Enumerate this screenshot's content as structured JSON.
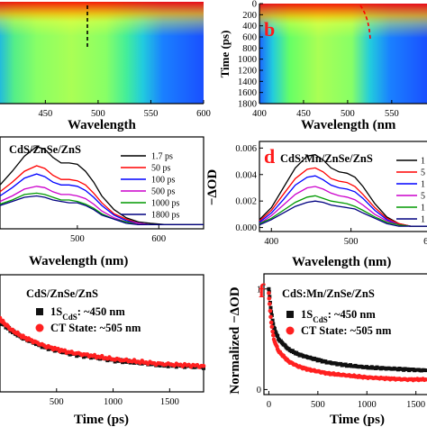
{
  "panel_labels": {
    "b": "b",
    "d": "d",
    "f": "f"
  },
  "colors": {
    "label_red": "#ff1a1a",
    "black": "#111111",
    "red": "#ff2020"
  },
  "chart_data": [
    {
      "id": "a",
      "type": "heatmap",
      "title": "",
      "xlabel": "Wavelength",
      "xticks": [
        "450",
        "500",
        "550",
        "600"
      ],
      "xlim": [
        407,
        600
      ],
      "marker": {
        "wavelength_nm": 505,
        "style": "dashed vertical",
        "color": "#000000"
      },
      "colormap": [
        "#ff0000",
        "#ffb000",
        "#ffff33",
        "#66ff66",
        "#22ccdd",
        "#1a66ff"
      ]
    },
    {
      "id": "b",
      "type": "heatmap",
      "title": "",
      "xlabel": "Wavelength (nm",
      "ylabel": "Time (ps)",
      "xticks": [
        "400",
        "450",
        "500",
        "550"
      ],
      "yticks": [
        "0",
        "200",
        "400",
        "600",
        "800",
        "1000",
        "1200",
        "1400",
        "1600",
        "1800"
      ],
      "xlim": [
        400,
        590
      ],
      "ylim": [
        0,
        1800
      ],
      "marker": {
        "points": [
          [
            504,
            0
          ],
          [
            508,
            400
          ],
          [
            512,
            800
          ]
        ],
        "style": "dashed curve",
        "color": "#ff0000"
      },
      "colormap": [
        "#ff0000",
        "#ffb000",
        "#ffff33",
        "#66ff66",
        "#22ccdd",
        "#1a66ff"
      ]
    },
    {
      "id": "c",
      "type": "line",
      "title": "CdS/ZnSe/ZnS",
      "xlabel": "Wavelength (nm)",
      "ylabel": "",
      "xticks": [
        "500",
        "600"
      ],
      "xlim": [
        405,
        655
      ],
      "ylim": [
        -0.0002,
        0.0065
      ],
      "legend_position": "top-right",
      "x": [
        405,
        420,
        435,
        450,
        460,
        470,
        480,
        490,
        500,
        510,
        520,
        530,
        545,
        560,
        575,
        590,
        610,
        630,
        655
      ],
      "series": [
        {
          "name": "1.7 ps",
          "color": "#000000",
          "values": [
            0.003,
            0.004,
            0.0051,
            0.0058,
            0.0056,
            0.005,
            0.0046,
            0.0046,
            0.0045,
            0.004,
            0.0032,
            0.0022,
            0.0012,
            0.0006,
            0.0003,
            0.0002,
            0.0001,
            0.0001,
            0.0001
          ]
        },
        {
          "name": "50 ps",
          "color": "#ff0000",
          "values": [
            0.0025,
            0.0032,
            0.004,
            0.0044,
            0.0042,
            0.0037,
            0.0034,
            0.0034,
            0.0033,
            0.003,
            0.0024,
            0.0017,
            0.0009,
            0.0005,
            0.0002,
            0.0001,
            0.0001,
            0.0001,
            0.0001
          ]
        },
        {
          "name": "100 ps",
          "color": "#0000ff",
          "values": [
            0.0022,
            0.0028,
            0.0035,
            0.0038,
            0.0036,
            0.0032,
            0.003,
            0.003,
            0.0029,
            0.0026,
            0.0021,
            0.0015,
            0.0008,
            0.0004,
            0.0002,
            0.0001,
            0.0001,
            0.0001,
            0.0001
          ]
        },
        {
          "name": "500 ps",
          "color": "#cc00cc",
          "values": [
            0.0018,
            0.0022,
            0.0027,
            0.0029,
            0.0028,
            0.0025,
            0.0023,
            0.0023,
            0.0022,
            0.002,
            0.0016,
            0.0011,
            0.0006,
            0.0003,
            0.0002,
            0.0001,
            0.0001,
            0.0001,
            0.0001
          ]
        },
        {
          "name": "1000 ps",
          "color": "#009900",
          "values": [
            0.0016,
            0.0019,
            0.0023,
            0.0024,
            0.0023,
            0.0021,
            0.0019,
            0.0019,
            0.0018,
            0.0016,
            0.0013,
            0.0009,
            0.0005,
            0.0003,
            0.0001,
            0.0001,
            0.0001,
            0.0001,
            0.0001
          ]
        },
        {
          "name": "1800 ps",
          "color": "#000080",
          "values": [
            0.0015,
            0.0018,
            0.0021,
            0.0022,
            0.0021,
            0.0019,
            0.0018,
            0.0017,
            0.0017,
            0.0015,
            0.0012,
            0.0008,
            0.0005,
            0.0002,
            0.0001,
            0.0001,
            0.0001,
            0.0001,
            0.0001
          ]
        }
      ]
    },
    {
      "id": "d",
      "type": "line",
      "title": "CdS:Mn/ZnSe/ZnS",
      "xlabel": "Wavelength (nm)",
      "ylabel": "−ΔOD",
      "xticks": [
        "400",
        "500",
        "600"
      ],
      "yticks": [
        "0.000",
        "0.002",
        "0.004",
        "0.006"
      ],
      "xlim": [
        385,
        600
      ],
      "ylim": [
        -0.0003,
        0.0065
      ],
      "legend_position": "top-right",
      "x": [
        385,
        400,
        415,
        430,
        445,
        455,
        465,
        475,
        485,
        495,
        505,
        515,
        530,
        545,
        560,
        575,
        590,
        600
      ],
      "series": [
        {
          "color": "#000000",
          "values": [
            0.0006,
            0.0015,
            0.003,
            0.0045,
            0.0054,
            0.0055,
            0.0051,
            0.0045,
            0.0042,
            0.0041,
            0.0038,
            0.0031,
            0.0018,
            0.0008,
            0.0003,
            0.0001,
            0.0001,
            0.0001
          ]
        },
        {
          "color": "#ff0000",
          "values": [
            0.0005,
            0.0013,
            0.0025,
            0.0037,
            0.0044,
            0.0045,
            0.0042,
            0.0037,
            0.0035,
            0.0034,
            0.0031,
            0.0025,
            0.0015,
            0.0007,
            0.0003,
            0.0001,
            0.0001,
            0.0001
          ]
        },
        {
          "color": "#0000ff",
          "values": [
            0.0004,
            0.0011,
            0.0021,
            0.0032,
            0.0038,
            0.0039,
            0.0036,
            0.0032,
            0.003,
            0.0029,
            0.0027,
            0.0022,
            0.0013,
            0.0006,
            0.0002,
            0.0001,
            0.0001,
            0.0001
          ]
        },
        {
          "color": "#cc00cc",
          "values": [
            0.0003,
            0.0009,
            0.0017,
            0.0025,
            0.003,
            0.0031,
            0.0029,
            0.0026,
            0.0024,
            0.0023,
            0.0021,
            0.0017,
            0.001,
            0.0005,
            0.0002,
            0.0001,
            0.0001,
            0.0001
          ]
        },
        {
          "color": "#009900",
          "values": [
            0.0003,
            0.0007,
            0.0013,
            0.0019,
            0.0023,
            0.0024,
            0.0022,
            0.002,
            0.0019,
            0.0018,
            0.0016,
            0.0013,
            0.0008,
            0.0004,
            0.0002,
            0.0001,
            0.0001,
            0.0001
          ]
        },
        {
          "color": "#000080",
          "values": [
            0.0002,
            0.0006,
            0.0011,
            0.0016,
            0.0019,
            0.002,
            0.0019,
            0.0017,
            0.0016,
            0.0015,
            0.0014,
            0.0011,
            0.0007,
            0.0003,
            0.0001,
            0.0001,
            0.0001,
            0.0001
          ]
        }
      ],
      "legend_partial": [
        "1",
        "5",
        "1",
        "5",
        "1",
        "1"
      ]
    },
    {
      "id": "e",
      "type": "scatter",
      "title": "CdS/ZnSe/ZnS",
      "xlabel": "Time (ps)",
      "ylabel": "",
      "xticks": [
        "500",
        "1000",
        "1500"
      ],
      "xlim": [
        0,
        1800
      ],
      "ylim": [
        0,
        1.0
      ],
      "legend_position": "top-left",
      "legend": [
        {
          "marker": "square",
          "color": "#111111",
          "label_main": "1S",
          "label_sub": "CdS",
          "label_rest": ": ~450 nm"
        },
        {
          "marker": "circle",
          "color": "#ff2020",
          "label_main": "CT State: ~505 nm"
        }
      ],
      "decay": [
        {
          "name": "1S CdS: ~450 nm",
          "x": [
            0,
            100,
            200,
            300,
            400,
            600,
            800,
            1000,
            1200,
            1400,
            1600,
            1800
          ],
          "y": [
            0.6,
            0.52,
            0.46,
            0.42,
            0.38,
            0.33,
            0.3,
            0.27,
            0.25,
            0.23,
            0.22,
            0.21
          ]
        },
        {
          "name": "CT State: ~505 nm",
          "x": [
            0,
            100,
            200,
            300,
            400,
            600,
            800,
            1000,
            1200,
            1400,
            1600,
            1800
          ],
          "y": [
            0.62,
            0.53,
            0.47,
            0.43,
            0.39,
            0.34,
            0.31,
            0.28,
            0.26,
            0.24,
            0.23,
            0.22
          ]
        }
      ]
    },
    {
      "id": "f",
      "type": "scatter",
      "title": "CdS:Mn/ZnSe/ZnS",
      "xlabel": "Time (ps)",
      "ylabel": "Normalized −ΔOD",
      "xticks": [
        "0",
        "500",
        "1000",
        "1500"
      ],
      "yticks": [
        "0",
        "1"
      ],
      "xlim": [
        -50,
        1650
      ],
      "ylim": [
        -0.05,
        1.15
      ],
      "legend_position": "top-left",
      "legend": [
        {
          "marker": "square",
          "color": "#111111",
          "label_main": "1S",
          "label_sub": "CdS",
          "label_rest": ": ~450 nm"
        },
        {
          "marker": "circle",
          "color": "#ff2020",
          "label_main": "CT State: ~505 nm"
        }
      ],
      "decay": [
        {
          "name": "1S CdS: ~450 nm",
          "x": [
            0,
            20,
            50,
            100,
            200,
            300,
            400,
            600,
            800,
            1000,
            1200,
            1400,
            1600
          ],
          "y": [
            1.0,
            0.8,
            0.62,
            0.5,
            0.4,
            0.35,
            0.32,
            0.27,
            0.24,
            0.22,
            0.21,
            0.2,
            0.19
          ]
        },
        {
          "name": "CT State: ~505 nm",
          "x": [
            0,
            20,
            50,
            100,
            200,
            300,
            400,
            600,
            800,
            1000,
            1200,
            1400,
            1600
          ],
          "y": [
            0.95,
            0.7,
            0.5,
            0.38,
            0.28,
            0.23,
            0.2,
            0.16,
            0.14,
            0.12,
            0.11,
            0.1,
            0.1
          ]
        }
      ]
    }
  ]
}
